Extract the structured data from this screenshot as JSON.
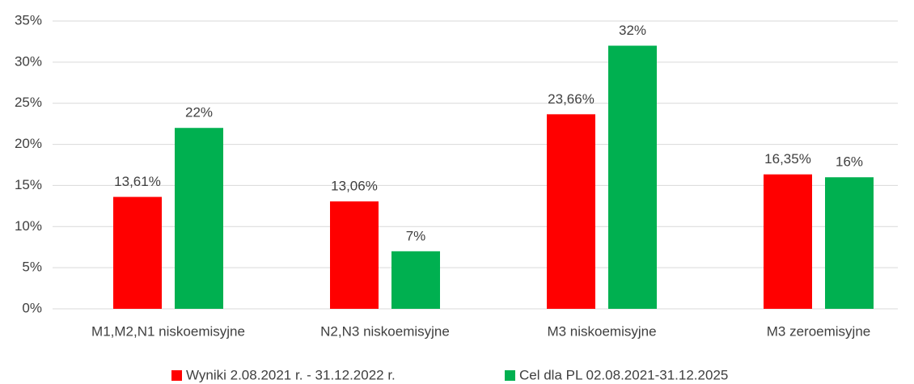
{
  "chart_data": {
    "type": "bar",
    "categories": [
      "M1,M2,N1 niskoemisyjne",
      "N2,N3 niskoemisyjne",
      "M3 niskoemisyjne",
      "M3 zeroemisyjne"
    ],
    "series": [
      {
        "name": "Wyniki 2.08.2021 r. - 31.12.2022 r.",
        "color": "#ff0000",
        "values": [
          13.61,
          13.06,
          23.66,
          16.35
        ],
        "value_labels": [
          "13,61%",
          "13,06%",
          "23,66%",
          "16,35%"
        ]
      },
      {
        "name": "Cel dla PL 02.08.2021-31.12.2025",
        "color": "#00b050",
        "values": [
          22,
          7,
          32,
          16
        ],
        "value_labels": [
          "22%",
          "7%",
          "32%",
          "16%"
        ]
      }
    ],
    "ylim": [
      0,
      35
    ],
    "yticks": [
      {
        "value": 0,
        "label": "0%"
      },
      {
        "value": 5,
        "label": "5%"
      },
      {
        "value": 10,
        "label": "10%"
      },
      {
        "value": 15,
        "label": "15%"
      },
      {
        "value": 20,
        "label": "20%"
      },
      {
        "value": 25,
        "label": "25%"
      },
      {
        "value": 30,
        "label": "30%"
      },
      {
        "value": 35,
        "label": "35%"
      }
    ],
    "grid": true,
    "legend": "bottom"
  }
}
